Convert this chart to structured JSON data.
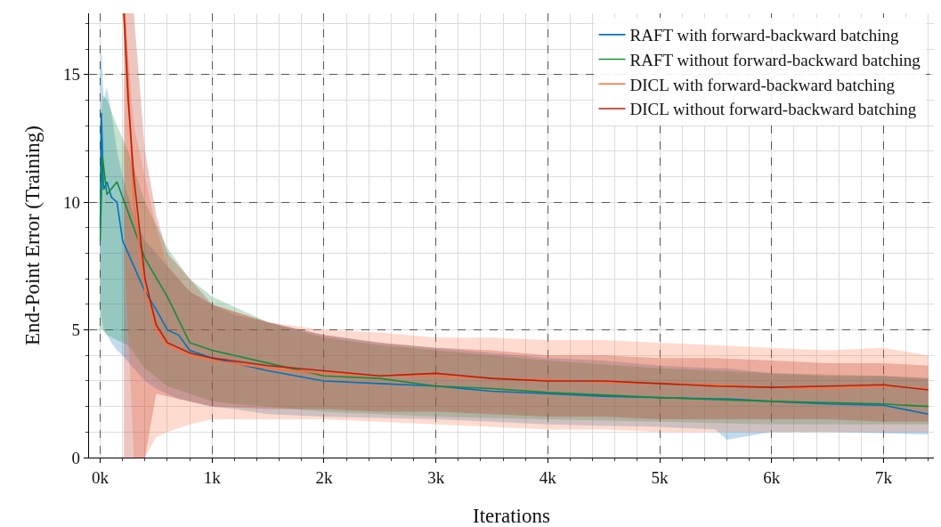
{
  "chart_data": {
    "type": "line",
    "xlabel": "Iterations",
    "ylabel": "End-Point Error (Training)",
    "xlim": [
      -100,
      7450
    ],
    "ylim": [
      0,
      17.4
    ],
    "xticks": [
      {
        "value": 0,
        "label": "0k"
      },
      {
        "value": 1000,
        "label": "1k"
      },
      {
        "value": 2000,
        "label": "2k"
      },
      {
        "value": 3000,
        "label": "3k"
      },
      {
        "value": 4000,
        "label": "4k"
      },
      {
        "value": 5000,
        "label": "5k"
      },
      {
        "value": 6000,
        "label": "6k"
      },
      {
        "value": 7000,
        "label": "7k"
      }
    ],
    "yticks": [
      0,
      5,
      10,
      15
    ],
    "grid": true,
    "legend": "top right",
    "line_style": "solid",
    "marker": "none",
    "series": [
      {
        "name": "RAFT with forward-backward batching",
        "color": "#0072bd",
        "x": [
          0,
          10,
          30,
          60,
          100,
          150,
          200,
          300,
          400,
          500,
          600,
          700,
          800,
          1000,
          1200,
          1500,
          2000,
          2500,
          3000,
          3500,
          4000,
          4500,
          5000,
          5500,
          5600,
          6000,
          6500,
          7000,
          7400
        ],
        "values": [
          9,
          13.5,
          10.5,
          10.8,
          10.2,
          10.0,
          8.5,
          7.5,
          6.5,
          5.8,
          5.0,
          4.8,
          4.2,
          3.9,
          3.7,
          3.4,
          3.0,
          2.9,
          2.8,
          2.6,
          2.5,
          2.4,
          2.35,
          2.3,
          2.3,
          2.2,
          2.1,
          2.05,
          1.7
        ],
        "lower": [
          6,
          5.5,
          5,
          4.8,
          4.5,
          4.2,
          4,
          3.5,
          3,
          2.7,
          2.5,
          2.3,
          2.2,
          2,
          1.9,
          1.7,
          1.6,
          1.55,
          1.5,
          1.4,
          1.3,
          1.25,
          1.2,
          1.1,
          0.7,
          1.0,
          1.0,
          0.95,
          0.9
        ],
        "upper": [
          15,
          16.3,
          14,
          14.5,
          13.5,
          12,
          11,
          9.5,
          8.5,
          8,
          7.5,
          7,
          6.5,
          6,
          5.6,
          5.3,
          4.8,
          4.5,
          4.3,
          4.1,
          3.9,
          3.8,
          3.6,
          3.5,
          3.5,
          3.3,
          3.2,
          3.2,
          3.1
        ]
      },
      {
        "name": "RAFT without forward-backward batching",
        "color": "#178a3c",
        "x": [
          0,
          20,
          60,
          150,
          250,
          400,
          600,
          800,
          1000,
          1200,
          1500,
          2000,
          2500,
          3000,
          3500,
          4000,
          5000,
          6000,
          7000,
          7400
        ],
        "values": [
          8.5,
          11.8,
          10.3,
          10.8,
          9.6,
          7.8,
          6.3,
          4.5,
          4.2,
          4.0,
          3.7,
          3.2,
          3.1,
          2.8,
          2.7,
          2.55,
          2.35,
          2.2,
          2.1,
          2.0
        ],
        "lower": [
          5,
          5,
          4.8,
          4.6,
          4.4,
          3.5,
          2.8,
          2.5,
          2.2,
          2.1,
          2.0,
          1.8,
          1.7,
          1.6,
          1.55,
          1.5,
          1.4,
          1.3,
          1.3,
          1.3
        ],
        "upper": [
          13,
          14.2,
          14,
          13,
          12,
          10,
          8.2,
          7,
          6.3,
          5.9,
          5.3,
          4.7,
          4.4,
          4.2,
          4,
          3.8,
          3.5,
          3.3,
          3.2,
          3.1
        ]
      },
      {
        "name": "DICL with forward-backward batching",
        "color": "#ff6e40",
        "x": [
          220,
          300,
          400,
          500,
          600,
          800,
          1000,
          1500,
          2000,
          2500,
          3000,
          3500,
          4000,
          4500,
          5000,
          5500,
          6000,
          6500,
          7000,
          7400
        ],
        "values": [
          17.4,
          10,
          6.5,
          5,
          4.4,
          4.0,
          3.8,
          3.5,
          3.3,
          3.2,
          3.2,
          3.1,
          3.05,
          2.95,
          2.9,
          2.85,
          2.75,
          2.7,
          2.8,
          2.7
        ],
        "lower": [
          8,
          0,
          0,
          0.8,
          1,
          1.3,
          1.5,
          1.5,
          1.5,
          1.4,
          1.3,
          1.2,
          1.1,
          1.1,
          1.0,
          1.0,
          1.0,
          1.0,
          1.0,
          1.0
        ],
        "upper": [
          17.4,
          13,
          11,
          9,
          7.5,
          6.5,
          6,
          5.3,
          5.0,
          4.9,
          4.7,
          4.7,
          4.6,
          4.6,
          4.5,
          4.4,
          4.3,
          4.2,
          4.3,
          4.0
        ]
      },
      {
        "name": "DICL without forward-backward batching",
        "color": "#b3200a",
        "x": [
          210,
          250,
          300,
          400,
          500,
          600,
          800,
          1000,
          1500,
          2000,
          2500,
          3000,
          3500,
          4000,
          4500,
          5000,
          5500,
          6000,
          6500,
          7000,
          7400
        ],
        "values": [
          17.4,
          14,
          11,
          7,
          5.2,
          4.5,
          4.1,
          3.9,
          3.6,
          3.4,
          3.2,
          3.3,
          3.1,
          3.0,
          3.0,
          2.9,
          2.8,
          2.75,
          2.8,
          2.85,
          2.65
        ],
        "lower": [
          0,
          0,
          0,
          0,
          2.5,
          2.4,
          2.2,
          2.0,
          1.9,
          1.9,
          1.8,
          1.8,
          1.7,
          1.6,
          1.6,
          1.5,
          1.5,
          1.5,
          1.5,
          1.4,
          1.4
        ],
        "upper": [
          17.4,
          17.4,
          17.4,
          12,
          9.5,
          8,
          7,
          6,
          5.3,
          4.8,
          4.5,
          4.3,
          4.2,
          4.0,
          4.0,
          3.9,
          3.9,
          3.8,
          3.7,
          3.7,
          3.6
        ]
      }
    ]
  }
}
